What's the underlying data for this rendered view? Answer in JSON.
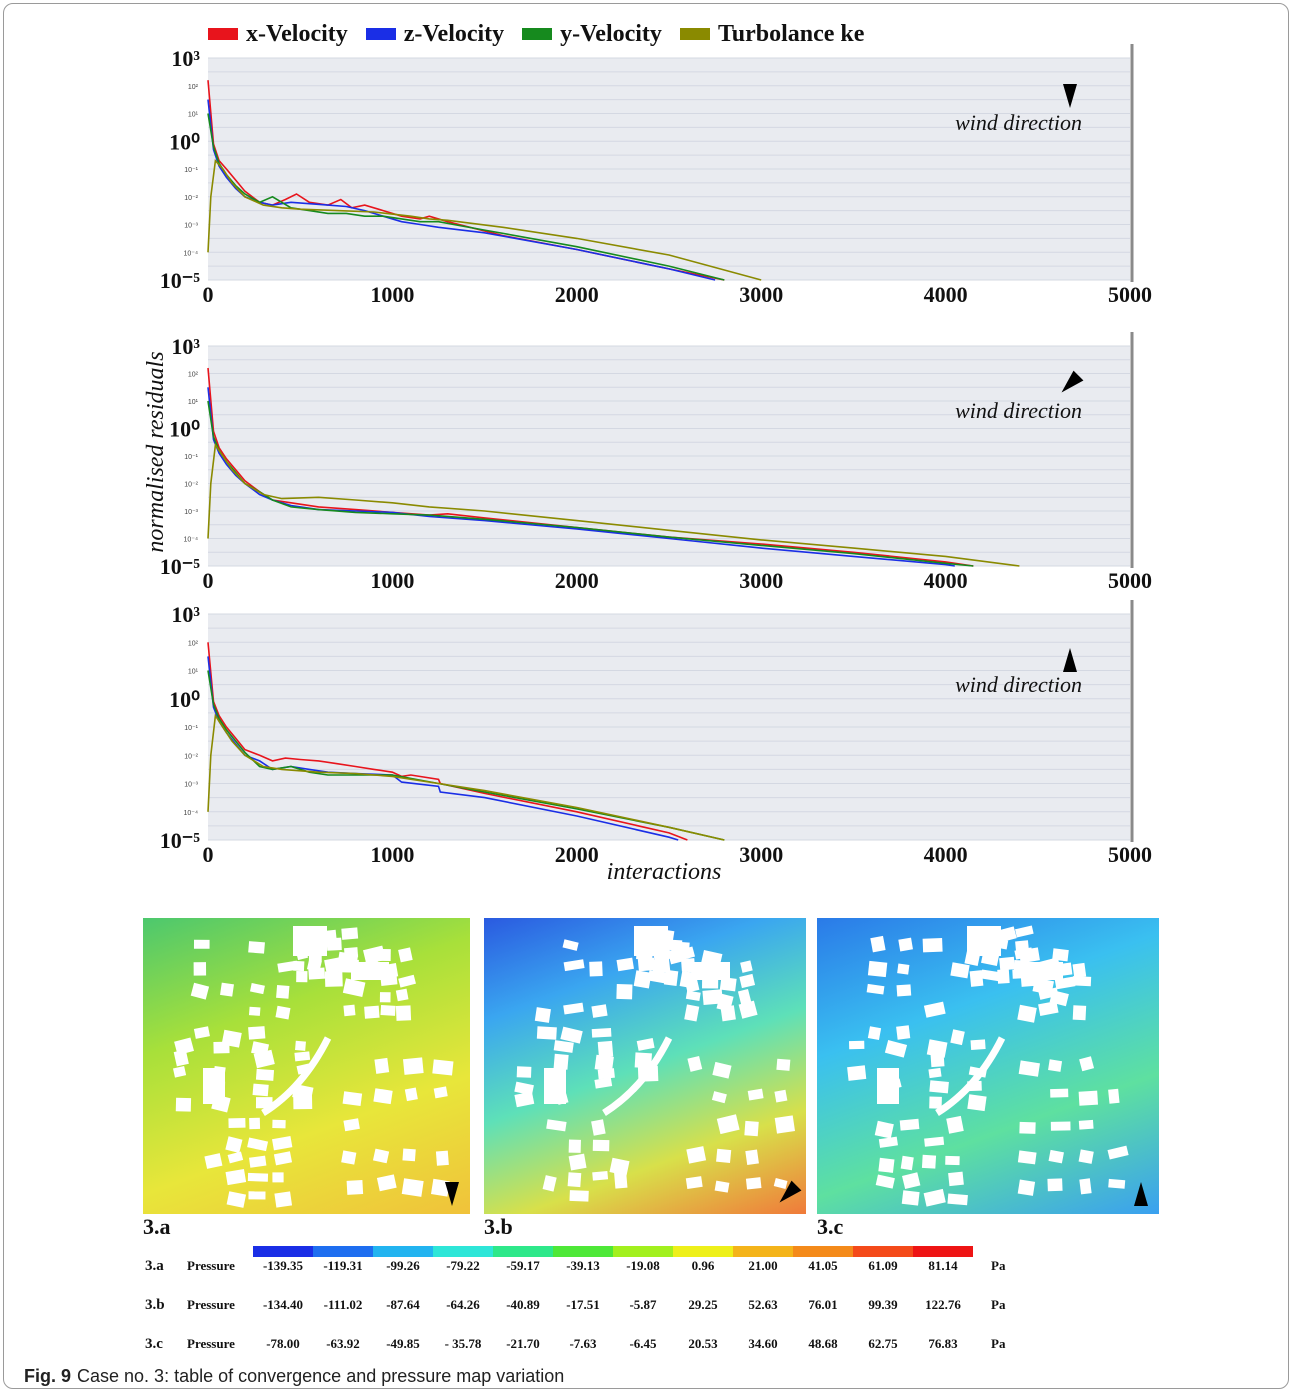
{
  "legend": [
    {
      "name": "x-Velocity",
      "color": "#e8141c"
    },
    {
      "name": "z-Velocity",
      "color": "#1a2ee6"
    },
    {
      "name": "y-Velocity",
      "color": "#168a1e"
    },
    {
      "name": "Turbolance ke",
      "color": "#8a8a00"
    }
  ],
  "y_axis_label": "normalised residuals",
  "x_axis_label": "interactions",
  "direction_label": "wind direction",
  "chart_data": [
    {
      "type": "line",
      "xlim": [
        0,
        5000
      ],
      "ylim_log10": [
        -5,
        3
      ],
      "x_ticks": [
        0,
        1000,
        2000,
        3000,
        4000,
        5000
      ],
      "y_major_ticks": [
        "10³",
        "10⁰",
        "10⁻⁵"
      ],
      "y_minor_ticks": [
        "10²",
        "10¹",
        "10⁻¹",
        "10⁻²",
        "10⁻³",
        "10⁻⁴"
      ],
      "wind_direction_angle": 180,
      "series": [
        {
          "name": "x-Velocity",
          "x": [
            0,
            30,
            60,
            100,
            150,
            200,
            280,
            350,
            420,
            480,
            550,
            650,
            720,
            780,
            850,
            950,
            1050,
            1150,
            1200,
            1300,
            1600,
            2000,
            2500,
            2800
          ],
          "y_log10": [
            2.2,
            -0.1,
            -0.7,
            -1.0,
            -1.4,
            -1.8,
            -2.2,
            -2.3,
            -2.1,
            -1.9,
            -2.2,
            -2.3,
            -2.1,
            -2.4,
            -2.3,
            -2.5,
            -2.7,
            -2.8,
            -2.7,
            -2.9,
            -3.4,
            -3.9,
            -4.6,
            -5.0
          ]
        },
        {
          "name": "z-Velocity",
          "x": [
            0,
            30,
            60,
            100,
            150,
            200,
            280,
            350,
            450,
            550,
            650,
            750,
            850,
            950,
            1050,
            1150,
            1250,
            1500,
            2000,
            2500,
            2750
          ],
          "y_log10": [
            1.5,
            -0.3,
            -0.9,
            -1.3,
            -1.7,
            -2.0,
            -2.2,
            -2.3,
            -2.2,
            -2.25,
            -2.3,
            -2.35,
            -2.5,
            -2.7,
            -2.9,
            -3.0,
            -3.1,
            -3.3,
            -3.9,
            -4.6,
            -5.0
          ]
        },
        {
          "name": "y-Velocity",
          "x": [
            0,
            30,
            60,
            100,
            150,
            200,
            280,
            350,
            450,
            550,
            650,
            750,
            850,
            950,
            1050,
            1150,
            1250,
            1500,
            2000,
            2500,
            2800
          ],
          "y_log10": [
            1.0,
            -0.2,
            -0.8,
            -1.2,
            -1.6,
            -1.9,
            -2.2,
            -2.0,
            -2.4,
            -2.5,
            -2.6,
            -2.6,
            -2.7,
            -2.7,
            -2.8,
            -2.9,
            -2.9,
            -3.2,
            -3.8,
            -4.5,
            -5.0
          ]
        },
        {
          "name": "Turbolance ke",
          "x": [
            0,
            15,
            40,
            80,
            130,
            200,
            300,
            400,
            500,
            700,
            900,
            1100,
            1200,
            1300,
            1600,
            2000,
            2500,
            3000
          ],
          "y_log10": [
            -4.0,
            -2.0,
            -0.7,
            -1.0,
            -1.5,
            -2.0,
            -2.3,
            -2.4,
            -2.45,
            -2.5,
            -2.55,
            -2.7,
            -2.8,
            -2.85,
            -3.1,
            -3.5,
            -4.1,
            -5.0
          ]
        }
      ]
    },
    {
      "type": "line",
      "xlim": [
        0,
        5000
      ],
      "ylim_log10": [
        -5,
        3
      ],
      "x_ticks": [
        0,
        1000,
        2000,
        3000,
        4000,
        5000
      ],
      "y_major_ticks": [
        "10³",
        "10⁰",
        "10⁻⁵"
      ],
      "y_minor_ticks": [
        "10²",
        "10¹",
        "10⁻¹",
        "10⁻²",
        "10⁻³",
        "10⁻⁴"
      ],
      "wind_direction_angle": 135,
      "series": [
        {
          "name": "x-Velocity",
          "x": [
            0,
            30,
            60,
            100,
            150,
            200,
            280,
            350,
            450,
            600,
            800,
            1000,
            1200,
            1300,
            1500,
            2000,
            2500,
            3000,
            3500,
            4000,
            4150
          ],
          "y_log10": [
            2.2,
            -0.1,
            -0.7,
            -1.1,
            -1.5,
            -1.9,
            -2.3,
            -2.6,
            -2.7,
            -2.85,
            -2.95,
            -3.05,
            -3.15,
            -3.1,
            -3.25,
            -3.6,
            -3.95,
            -4.2,
            -4.5,
            -4.85,
            -5.0
          ]
        },
        {
          "name": "z-Velocity",
          "x": [
            0,
            30,
            60,
            100,
            150,
            200,
            280,
            350,
            450,
            600,
            800,
            1000,
            1200,
            1500,
            2000,
            2500,
            3000,
            3500,
            4000,
            4050
          ],
          "y_log10": [
            1.5,
            -0.4,
            -0.9,
            -1.3,
            -1.7,
            -2.0,
            -2.4,
            -2.6,
            -2.8,
            -2.95,
            -3.0,
            -3.05,
            -3.2,
            -3.35,
            -3.65,
            -4.0,
            -4.35,
            -4.65,
            -4.95,
            -5.0
          ]
        },
        {
          "name": "y-Velocity",
          "x": [
            0,
            30,
            60,
            100,
            150,
            200,
            280,
            350,
            450,
            600,
            800,
            1000,
            1200,
            1500,
            2000,
            2500,
            3000,
            3500,
            4000,
            4150
          ],
          "y_log10": [
            1.0,
            -0.3,
            -0.8,
            -1.2,
            -1.6,
            -2.0,
            -2.3,
            -2.6,
            -2.85,
            -2.95,
            -3.05,
            -3.1,
            -3.15,
            -3.3,
            -3.6,
            -3.95,
            -4.25,
            -4.55,
            -4.9,
            -5.0
          ]
        },
        {
          "name": "Turbolance ke",
          "x": [
            0,
            15,
            40,
            80,
            130,
            200,
            300,
            400,
            600,
            800,
            1000,
            1200,
            1500,
            2000,
            2500,
            3000,
            3500,
            4000,
            4400
          ],
          "y_log10": [
            -4.0,
            -2.0,
            -0.6,
            -1.0,
            -1.5,
            -2.0,
            -2.4,
            -2.55,
            -2.5,
            -2.6,
            -2.7,
            -2.85,
            -3.0,
            -3.35,
            -3.7,
            -4.05,
            -4.35,
            -4.65,
            -5.0
          ]
        }
      ]
    },
    {
      "type": "line",
      "xlim": [
        0,
        5000
      ],
      "ylim_log10": [
        -5,
        3
      ],
      "x_ticks": [
        0,
        1000,
        2000,
        3000,
        4000,
        5000
      ],
      "y_major_ticks": [
        "10³",
        "10⁰",
        "10⁻⁵"
      ],
      "y_minor_ticks": [
        "10²",
        "10¹",
        "10⁻¹",
        "10⁻²",
        "10⁻³",
        "10⁻⁴"
      ],
      "wind_direction_angle": 0,
      "series": [
        {
          "name": "x-Velocity",
          "x": [
            0,
            30,
            60,
            100,
            150,
            200,
            280,
            350,
            420,
            500,
            600,
            700,
            800,
            900,
            1000,
            1050,
            1100,
            1250,
            1260,
            1500,
            2000,
            2500,
            2600
          ],
          "y_log10": [
            2.0,
            -0.1,
            -0.6,
            -1.0,
            -1.4,
            -1.8,
            -2.0,
            -2.2,
            -2.1,
            -2.15,
            -2.2,
            -2.3,
            -2.4,
            -2.5,
            -2.6,
            -2.75,
            -2.7,
            -2.85,
            -3.0,
            -3.35,
            -4.0,
            -4.75,
            -5.0
          ]
        },
        {
          "name": "z-Velocity",
          "x": [
            0,
            30,
            60,
            100,
            150,
            200,
            280,
            350,
            450,
            550,
            650,
            800,
            1000,
            1050,
            1250,
            1260,
            1500,
            2000,
            2500,
            2550
          ],
          "y_log10": [
            1.5,
            -0.3,
            -0.8,
            -1.2,
            -1.6,
            -2.0,
            -2.2,
            -2.5,
            -2.4,
            -2.5,
            -2.6,
            -2.65,
            -2.7,
            -2.95,
            -3.1,
            -3.3,
            -3.5,
            -4.15,
            -4.9,
            -5.0
          ]
        },
        {
          "name": "y-Velocity",
          "x": [
            0,
            30,
            60,
            100,
            150,
            200,
            280,
            350,
            450,
            550,
            650,
            800,
            1000,
            1250,
            1500,
            2000,
            2500,
            2800
          ],
          "y_log10": [
            1.0,
            -0.2,
            -0.7,
            -1.1,
            -1.5,
            -1.9,
            -2.4,
            -2.5,
            -2.4,
            -2.6,
            -2.7,
            -2.7,
            -2.7,
            -3.0,
            -3.3,
            -3.9,
            -4.55,
            -5.0
          ]
        },
        {
          "name": "Turbolance ke",
          "x": [
            0,
            15,
            40,
            80,
            130,
            200,
            300,
            400,
            600,
            800,
            1000,
            1250,
            1500,
            2000,
            2500,
            2800
          ],
          "y_log10": [
            -4.0,
            -2.0,
            -0.6,
            -1.0,
            -1.5,
            -2.0,
            -2.4,
            -2.5,
            -2.6,
            -2.65,
            -2.75,
            -3.0,
            -3.25,
            -3.85,
            -4.55,
            -5.0
          ]
        }
      ]
    }
  ],
  "maps": [
    {
      "label": "3.a",
      "gradient": [
        "#4cc86e",
        "#a8e03a",
        "#e8e63a",
        "#f0c23a"
      ]
    },
    {
      "label": "3.b",
      "gradient": [
        "#2a5ae0",
        "#3aa6f0",
        "#5ee0b8",
        "#d8e04a",
        "#f07a3a"
      ]
    },
    {
      "label": "3.c",
      "gradient": [
        "#2a7ae8",
        "#3ac0f0",
        "#5ee0a0",
        "#3aa0f0"
      ]
    }
  ],
  "pressure_scale_colors": [
    "#1a2ee6",
    "#1e6ef0",
    "#22b4f0",
    "#2ee6d8",
    "#2ee88a",
    "#4ee838",
    "#a2f01e",
    "#eef01a",
    "#f4b41a",
    "#f48a1a",
    "#f44a1a",
    "#ee1414"
  ],
  "pressure_table": [
    {
      "case": "3.a",
      "name": "Pressure",
      "values": [
        "-139.35",
        "-119.31",
        "-99.26",
        "-79.22",
        "-59.17",
        "-39.13",
        "-19.08",
        "0.96",
        "21.00",
        "41.05",
        "61.09",
        "81.14"
      ],
      "unit": "Pa"
    },
    {
      "case": "3.b",
      "name": "Pressure",
      "values": [
        "-134.40",
        "-111.02",
        "-87.64",
        "-64.26",
        "-40.89",
        "-17.51",
        "-5.87",
        "29.25",
        "52.63",
        "76.01",
        "99.39",
        "122.76"
      ],
      "unit": "Pa"
    },
    {
      "case": "3.c",
      "name": "Pressure",
      "values": [
        "-78.00",
        "-63.92",
        "-49.85",
        "- 35.78",
        "-21.70",
        "-7.63",
        "-6.45",
        "20.53",
        "34.60",
        "48.68",
        "62.75",
        "76.83"
      ],
      "unit": "Pa"
    }
  ],
  "caption": {
    "label": "Fig. 9",
    "text": "Case no. 3: table of convergence and pressure map variation"
  }
}
